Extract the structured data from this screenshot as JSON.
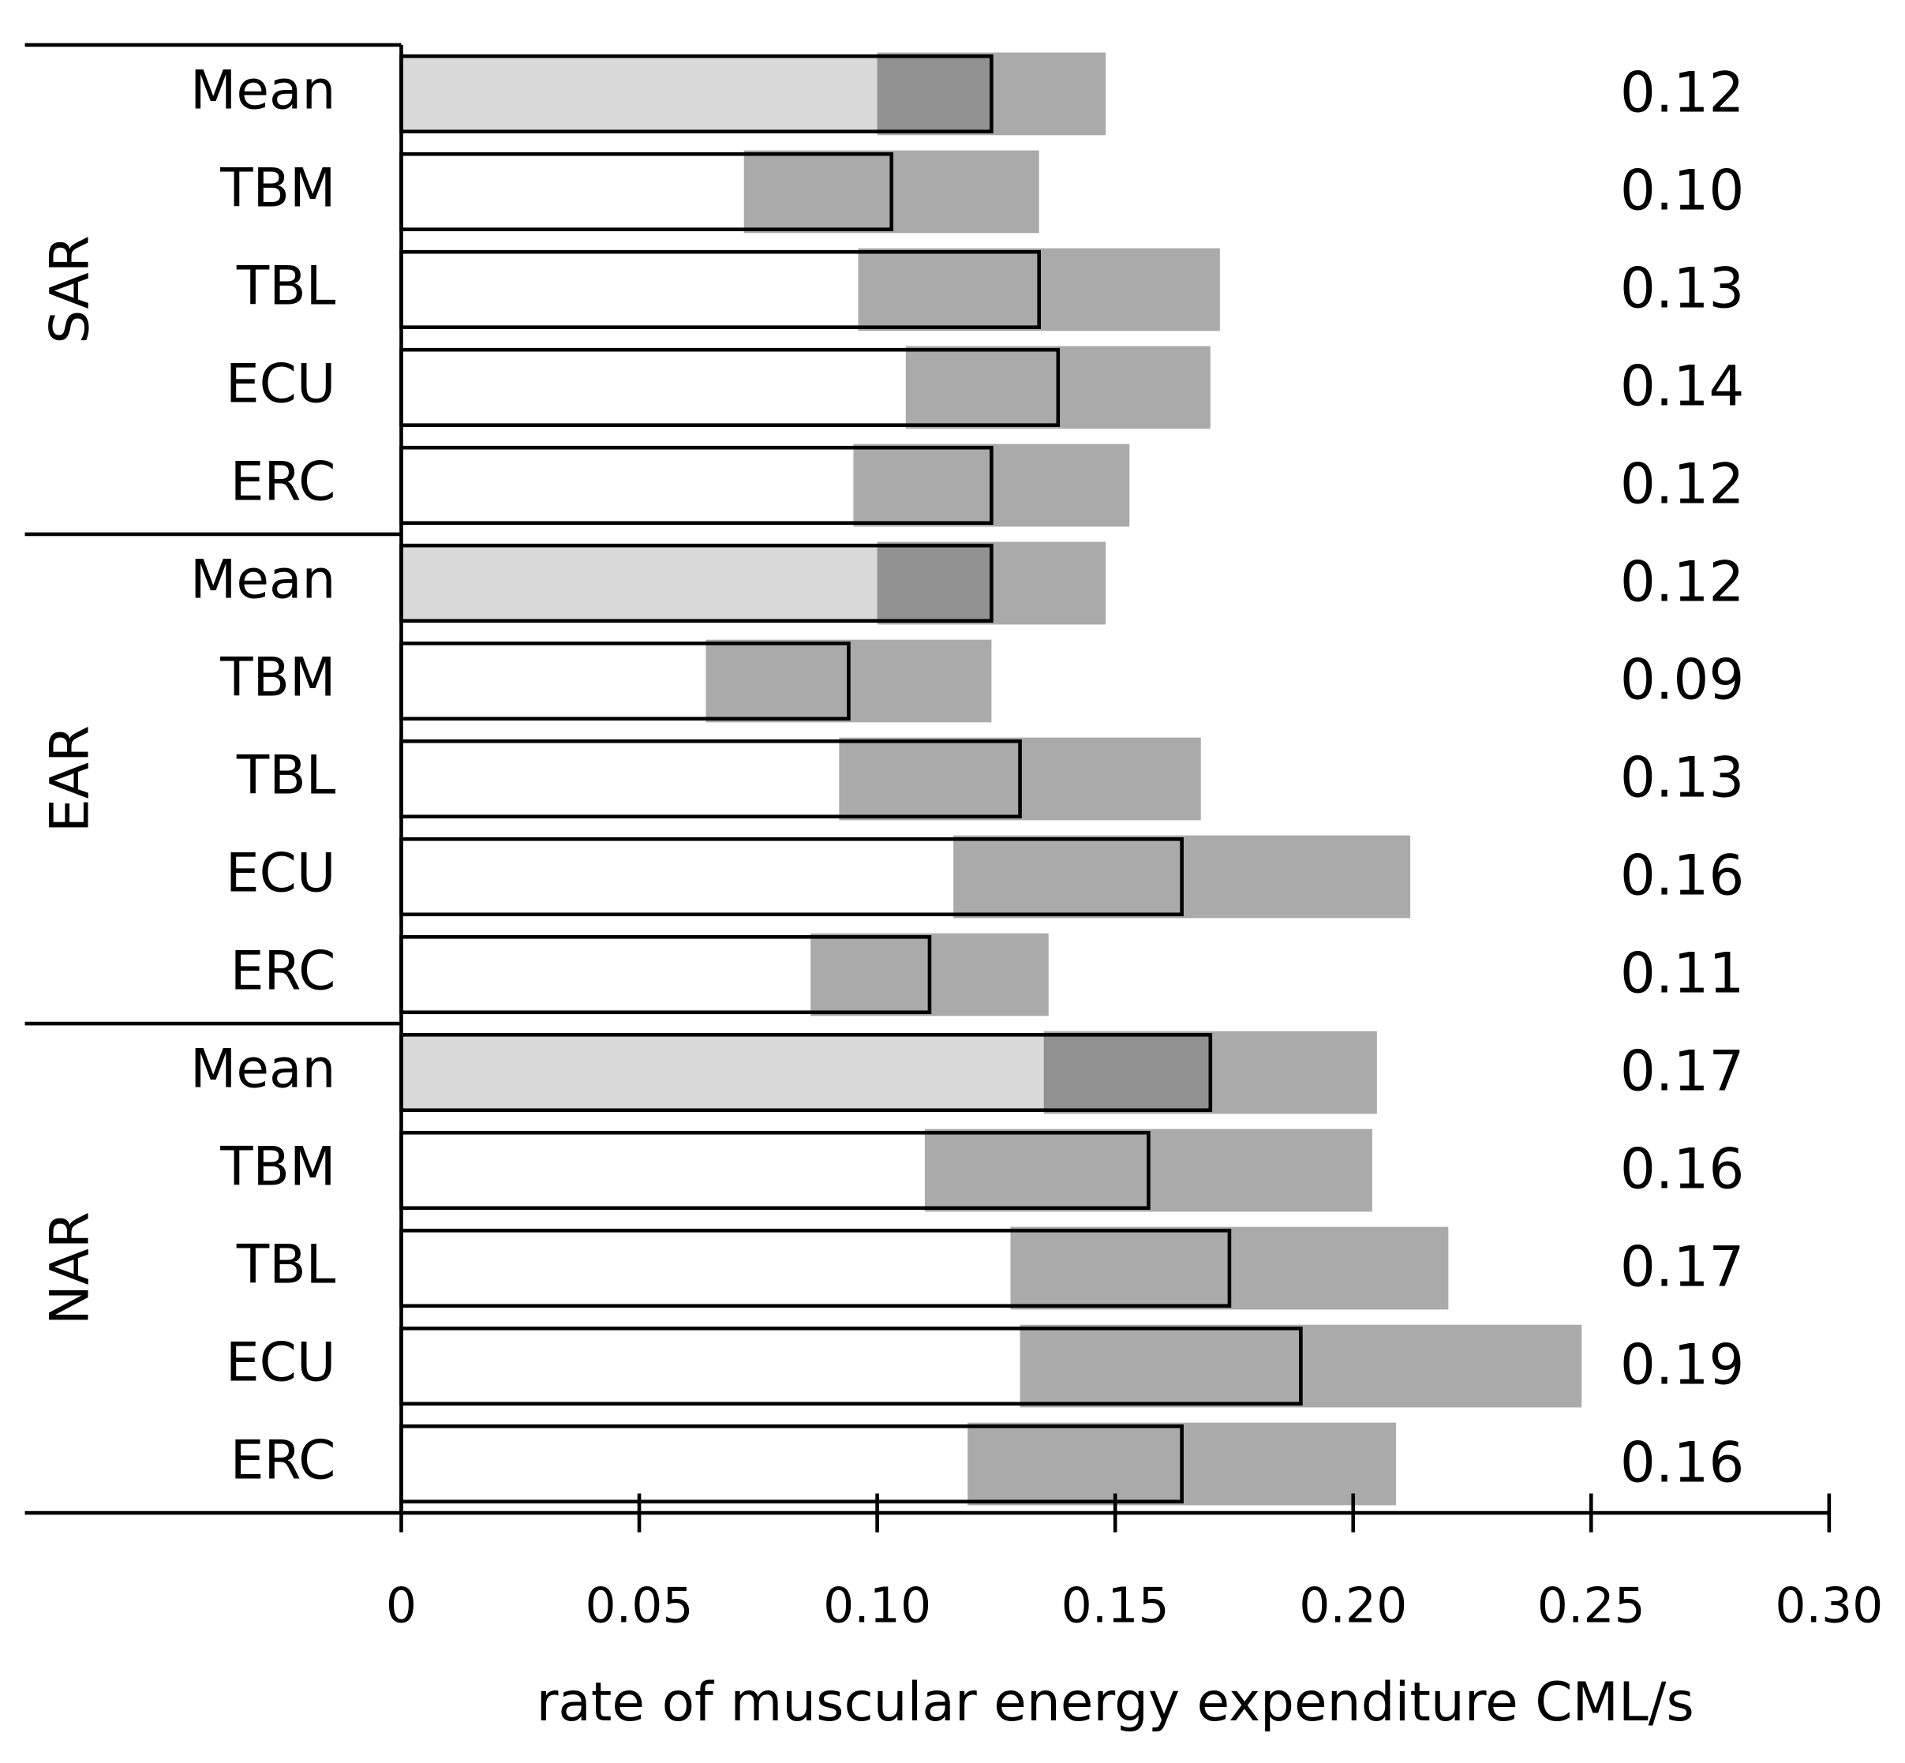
{
  "chart_data": {
    "type": "bar",
    "orientation": "horizontal",
    "x_label": "rate of muscular energy expenditure CML/s",
    "xlim": [
      0,
      0.3
    ],
    "xticks": [
      0,
      0.05,
      {
        "value": 0.1,
        "label": "0.10"
      },
      0.15,
      {
        "value": 0.2,
        "label": "0.20"
      },
      0.25,
      {
        "value": 0.3,
        "label": "0.30"
      }
    ],
    "error_color": "#aaaaaa",
    "groups": [
      {
        "name": "SAR",
        "categories": [
          "Mean",
          "TBM",
          "TBL",
          "ECU",
          "ERC"
        ],
        "values": [
          0.124,
          0.103,
          0.134,
          0.138,
          0.124
        ],
        "errors": [
          0.024,
          0.031,
          0.038,
          0.032,
          0.029
        ],
        "value_labels": [
          "0.12",
          "0.10",
          "0.13",
          "0.14",
          "0.12"
        ],
        "fills": [
          "#d9d9d9",
          "#ffffff",
          "#ffffff",
          "#ffffff",
          "#ffffff"
        ]
      },
      {
        "name": "EAR",
        "categories": [
          "Mean",
          "TBM",
          "TBL",
          "ECU",
          "ERC"
        ],
        "values": [
          0.124,
          0.094,
          0.13,
          0.164,
          0.111
        ],
        "errors": [
          0.024,
          0.03,
          0.038,
          0.048,
          0.025
        ],
        "value_labels": [
          "0.12",
          "0.09",
          "0.13",
          "0.16",
          "0.11"
        ],
        "fills": [
          "#d9d9d9",
          "#ffffff",
          "#ffffff",
          "#ffffff",
          "#ffffff"
        ]
      },
      {
        "name": "NAR",
        "categories": [
          "Mean",
          "TBM",
          "TBL",
          "ECU",
          "ERC"
        ],
        "values": [
          0.17,
          0.157,
          0.174,
          0.189,
          0.164
        ],
        "errors": [
          0.035,
          0.047,
          0.046,
          0.059,
          0.045
        ],
        "value_labels": [
          "0.17",
          "0.16",
          "0.17",
          "0.19",
          "0.16"
        ],
        "fills": [
          "#d9d9d9",
          "#ffffff",
          "#ffffff",
          "#ffffff",
          "#ffffff"
        ]
      }
    ]
  }
}
